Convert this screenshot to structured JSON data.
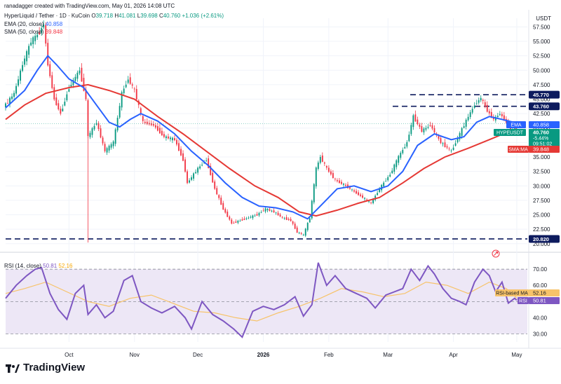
{
  "header": {
    "creator_line": "ranadagger created with TradingView.com, May 01, 2026 14:08 UTC",
    "symbol": "HyperLiquid / Tether · 1D · KuCoin",
    "ohlc": {
      "o_label": "O",
      "o": "39.718",
      "h_label": "H",
      "h": "41.081",
      "l_label": "L",
      "l": "39.698",
      "c_label": "C",
      "c": "40.760",
      "change": "+1.036 (+2.61%)"
    },
    "ema_label": "EMA (20, close)",
    "ema_value": "40.858",
    "sma_label": "SMA (50, close)",
    "sma_value": "39.848",
    "rsi_label": "RSI (14, close)",
    "rsi_value": "50.81",
    "rsi_ma_value": "52.16"
  },
  "price_axis": {
    "unit": "USDT",
    "ticks": [
      "57.500",
      "55.000",
      "52.500",
      "50.000",
      "47.500",
      "45.000",
      "42.500",
      "40.000",
      "37.500",
      "35.000",
      "32.500",
      "30.000",
      "27.500",
      "25.000",
      "22.500",
      "20.000"
    ]
  },
  "rsi_axis": {
    "ticks": [
      "70.00",
      "60.00",
      "50.00",
      "40.00",
      "30.00"
    ]
  },
  "time_axis": {
    "ticks": [
      "Oct",
      "Nov",
      "Dec",
      "2026",
      "Feb",
      "Mar",
      "Apr",
      "May"
    ]
  },
  "labels": {
    "level_45770": "45.770",
    "level_43760": "43.760",
    "level_20820": "20.820",
    "ema_tag": "EMA",
    "ema_tag_value": "40.858",
    "symbol_tag": "HYPEUSDT",
    "symbol_tag_value": "40.760",
    "change_tag": "-5.44%",
    "timer_tag": "09:51:02",
    "sma_tag": "SMA:MA",
    "sma_tag_value": "39.848",
    "rsi_ma_tag": "RSI-based MA",
    "rsi_ma_tag_value": "52.16",
    "rsi_tag": "RSI",
    "rsi_tag_value": "50.81"
  },
  "brand": "TradingView",
  "colors": {
    "up": "#089981",
    "down": "#f23645",
    "ema": "#2962ff",
    "sma": "#e53935",
    "rsi": "#7e57c2",
    "rsi_ma": "#f7c36a",
    "band": "#ede7f6",
    "dash": "#0d1b5e"
  },
  "chart_data": [
    {
      "type": "candlestick",
      "title": "HyperLiquid / Tether · 1D · KuCoin",
      "ylabel": "USDT",
      "ylim": [
        19.0,
        59.0
      ],
      "x_range": [
        "2025-09-01",
        "2026-05-06"
      ],
      "horizontal_levels": [
        45.77,
        43.76,
        20.82
      ],
      "series": [
        {
          "name": "HYPEUSDT",
          "points": [
            [
              "2025-09-01",
              44.0
            ],
            [
              "2025-09-05",
              46.0
            ],
            [
              "2025-09-09",
              51.0
            ],
            [
              "2025-09-13",
              55.0
            ],
            [
              "2025-09-17",
              56.5
            ],
            [
              "2025-09-19",
              58.0
            ],
            [
              "2025-09-21",
              51.0
            ],
            [
              "2025-09-24",
              45.0
            ],
            [
              "2025-09-27",
              42.5
            ],
            [
              "2025-10-01",
              47.0
            ],
            [
              "2025-10-06",
              50.0
            ],
            [
              "2025-10-09",
              45.0
            ],
            [
              "2025-10-10",
              38.5
            ],
            [
              "2025-10-14",
              41.0
            ],
            [
              "2025-10-18",
              36.0
            ],
            [
              "2025-10-22",
              37.5
            ],
            [
              "2025-10-26",
              46.0
            ],
            [
              "2025-10-29",
              48.5
            ],
            [
              "2025-11-01",
              46.5
            ],
            [
              "2025-11-05",
              41.0
            ],
            [
              "2025-11-10",
              40.5
            ],
            [
              "2025-11-15",
              38.5
            ],
            [
              "2025-11-20",
              38.0
            ],
            [
              "2025-11-24",
              34.5
            ],
            [
              "2025-11-26",
              30.5
            ],
            [
              "2025-12-01",
              33.0
            ],
            [
              "2025-12-05",
              34.5
            ],
            [
              "2025-12-09",
              29.5
            ],
            [
              "2025-12-13",
              26.0
            ],
            [
              "2025-12-17",
              23.5
            ],
            [
              "2025-12-21",
              24.0
            ],
            [
              "2025-12-25",
              24.5
            ],
            [
              "2025-12-29",
              25.0
            ],
            [
              "2026-01-02",
              26.0
            ],
            [
              "2026-01-06",
              25.5
            ],
            [
              "2026-01-10",
              24.5
            ],
            [
              "2026-01-14",
              24.0
            ],
            [
              "2026-01-17",
              22.0
            ],
            [
              "2026-01-20",
              21.5
            ],
            [
              "2026-01-23",
              24.5
            ],
            [
              "2026-01-26",
              33.0
            ],
            [
              "2026-01-28",
              35.0
            ],
            [
              "2026-01-31",
              33.0
            ],
            [
              "2026-02-04",
              31.0
            ],
            [
              "2026-02-09",
              30.0
            ],
            [
              "2026-02-13",
              29.0
            ],
            [
              "2026-02-17",
              28.0
            ],
            [
              "2026-02-21",
              27.0
            ],
            [
              "2026-02-25",
              29.5
            ],
            [
              "2026-03-02",
              32.0
            ],
            [
              "2026-03-06",
              35.0
            ],
            [
              "2026-03-10",
              37.5
            ],
            [
              "2026-03-13",
              42.0
            ],
            [
              "2026-03-17",
              39.5
            ],
            [
              "2026-03-21",
              40.5
            ],
            [
              "2026-03-26",
              37.5
            ],
            [
              "2026-03-31",
              36.0
            ],
            [
              "2026-04-04",
              39.0
            ],
            [
              "2026-04-08",
              42.0
            ],
            [
              "2026-04-11",
              44.0
            ],
            [
              "2026-04-14",
              45.2
            ],
            [
              "2026-04-17",
              43.0
            ],
            [
              "2026-04-20",
              41.5
            ],
            [
              "2026-04-23",
              42.5
            ],
            [
              "2026-04-26",
              41.0
            ],
            [
              "2026-04-28",
              39.5
            ],
            [
              "2026-04-30",
              40.1
            ],
            [
              "2026-05-01",
              40.76
            ]
          ]
        },
        {
          "name": "EMA (20, close)",
          "points": [
            [
              "2025-09-01",
              43.5
            ],
            [
              "2025-09-10",
              46.5
            ],
            [
              "2025-09-16",
              50.0
            ],
            [
              "2025-09-21",
              52.5
            ],
            [
              "2025-09-25",
              51.0
            ],
            [
              "2025-10-01",
              48.5
            ],
            [
              "2025-10-08",
              47.0
            ],
            [
              "2025-10-14",
              44.0
            ],
            [
              "2025-10-20",
              41.0
            ],
            [
              "2025-10-25",
              40.2
            ],
            [
              "2025-10-30",
              41.5
            ],
            [
              "2025-11-04",
              42.5
            ],
            [
              "2025-11-12",
              41.2
            ],
            [
              "2025-11-20",
              39.0
            ],
            [
              "2025-11-28",
              36.0
            ],
            [
              "2025-12-06",
              33.5
            ],
            [
              "2025-12-14",
              30.5
            ],
            [
              "2025-12-22",
              28.0
            ],
            [
              "2025-12-30",
              26.5
            ],
            [
              "2026-01-07",
              26.2
            ],
            [
              "2026-01-15",
              25.5
            ],
            [
              "2026-01-22",
              24.3
            ],
            [
              "2026-01-28",
              26.5
            ],
            [
              "2026-02-05",
              29.5
            ],
            [
              "2026-02-13",
              30.0
            ],
            [
              "2026-02-21",
              29.0
            ],
            [
              "2026-03-01",
              30.0
            ],
            [
              "2026-03-08",
              32.5
            ],
            [
              "2026-03-15",
              37.0
            ],
            [
              "2026-03-23",
              39.0
            ],
            [
              "2026-03-31",
              38.0
            ],
            [
              "2026-04-06",
              38.5
            ],
            [
              "2026-04-12",
              41.0
            ],
            [
              "2026-04-18",
              42.0
            ],
            [
              "2026-04-24",
              41.5
            ],
            [
              "2026-05-01",
              40.858
            ]
          ]
        },
        {
          "name": "SMA (50, close)",
          "points": [
            [
              "2025-09-01",
              41.5
            ],
            [
              "2025-09-10",
              44.0
            ],
            [
              "2025-09-20",
              46.0
            ],
            [
              "2025-10-01",
              47.0
            ],
            [
              "2025-10-10",
              47.5
            ],
            [
              "2025-10-20",
              46.5
            ],
            [
              "2025-11-01",
              45.0
            ],
            [
              "2025-11-12",
              42.0
            ],
            [
              "2025-11-24",
              39.0
            ],
            [
              "2025-12-05",
              36.0
            ],
            [
              "2025-12-16",
              33.0
            ],
            [
              "2025-12-28",
              30.0
            ],
            [
              "2026-01-08",
              28.0
            ],
            [
              "2026-01-18",
              25.5
            ],
            [
              "2026-01-26",
              24.8
            ],
            [
              "2026-02-05",
              25.8
            ],
            [
              "2026-02-15",
              27.0
            ],
            [
              "2026-02-25",
              28.0
            ],
            [
              "2026-03-08",
              30.5
            ],
            [
              "2026-03-18",
              33.0
            ],
            [
              "2026-03-28",
              35.0
            ],
            [
              "2026-04-08",
              36.5
            ],
            [
              "2026-04-18",
              38.0
            ],
            [
              "2026-04-26",
              39.2
            ],
            [
              "2026-05-01",
              39.848
            ]
          ]
        }
      ]
    },
    {
      "type": "line",
      "title": "RSI (14, close)",
      "ylim": [
        25,
        77
      ],
      "bands": [
        30,
        50,
        70
      ],
      "series": [
        {
          "name": "RSI",
          "points": [
            [
              "2025-09-01",
              52
            ],
            [
              "2025-09-06",
              60
            ],
            [
              "2025-09-11",
              66
            ],
            [
              "2025-09-15",
              70
            ],
            [
              "2025-09-18",
              71
            ],
            [
              "2025-09-22",
              55
            ],
            [
              "2025-09-26",
              45
            ],
            [
              "2025-09-30",
              39
            ],
            [
              "2025-10-04",
              55
            ],
            [
              "2025-10-08",
              60
            ],
            [
              "2025-10-10",
              42
            ],
            [
              "2025-10-14",
              48
            ],
            [
              "2025-10-18",
              40
            ],
            [
              "2025-10-22",
              44
            ],
            [
              "2025-10-27",
              63
            ],
            [
              "2025-10-31",
              66
            ],
            [
              "2025-11-04",
              50
            ],
            [
              "2025-11-09",
              46
            ],
            [
              "2025-11-14",
              43
            ],
            [
              "2025-11-20",
              47
            ],
            [
              "2025-11-25",
              40
            ],
            [
              "2025-11-28",
              33
            ],
            [
              "2025-12-03",
              50
            ],
            [
              "2025-12-08",
              42
            ],
            [
              "2025-12-13",
              38
            ],
            [
              "2025-12-18",
              33
            ],
            [
              "2025-12-22",
              28
            ],
            [
              "2025-12-27",
              44
            ],
            [
              "2026-01-01",
              47
            ],
            [
              "2026-01-06",
              45
            ],
            [
              "2026-01-11",
              48
            ],
            [
              "2026-01-16",
              53
            ],
            [
              "2026-01-20",
              41
            ],
            [
              "2026-01-24",
              48
            ],
            [
              "2026-01-27",
              74
            ],
            [
              "2026-01-31",
              60
            ],
            [
              "2026-02-04",
              66
            ],
            [
              "2026-02-09",
              58
            ],
            [
              "2026-02-14",
              55
            ],
            [
              "2026-02-19",
              52
            ],
            [
              "2026-02-23",
              46
            ],
            [
              "2026-02-28",
              54
            ],
            [
              "2026-03-04",
              56
            ],
            [
              "2026-03-08",
              58
            ],
            [
              "2026-03-12",
              70
            ],
            [
              "2026-03-16",
              63
            ],
            [
              "2026-03-20",
              72
            ],
            [
              "2026-03-23",
              67
            ],
            [
              "2026-03-27",
              58
            ],
            [
              "2026-03-31",
              52
            ],
            [
              "2026-04-04",
              50
            ],
            [
              "2026-04-07",
              48
            ],
            [
              "2026-04-11",
              62
            ],
            [
              "2026-04-15",
              70
            ],
            [
              "2026-04-18",
              66
            ],
            [
              "2026-04-21",
              56
            ],
            [
              "2026-04-24",
              62
            ],
            [
              "2026-04-27",
              49
            ],
            [
              "2026-04-30",
              52
            ],
            [
              "2026-05-01",
              50.81
            ]
          ]
        },
        {
          "name": "RSI-based MA",
          "points": [
            [
              "2025-09-01",
              55
            ],
            [
              "2025-09-10",
              58
            ],
            [
              "2025-09-20",
              62
            ],
            [
              "2025-09-30",
              56
            ],
            [
              "2025-10-10",
              50
            ],
            [
              "2025-10-20",
              47
            ],
            [
              "2025-10-30",
              52
            ],
            [
              "2025-11-09",
              54
            ],
            [
              "2025-11-19",
              49
            ],
            [
              "2025-11-29",
              44
            ],
            [
              "2025-12-09",
              43
            ],
            [
              "2025-12-19",
              40
            ],
            [
              "2025-12-29",
              38
            ],
            [
              "2026-01-08",
              43
            ],
            [
              "2026-01-18",
              47
            ],
            [
              "2026-01-28",
              52
            ],
            [
              "2026-02-07",
              58
            ],
            [
              "2026-02-17",
              56
            ],
            [
              "2026-02-27",
              53
            ],
            [
              "2026-03-09",
              55
            ],
            [
              "2026-03-19",
              62
            ],
            [
              "2026-03-29",
              60
            ],
            [
              "2026-04-08",
              55
            ],
            [
              "2026-04-18",
              62
            ],
            [
              "2026-04-26",
              58
            ],
            [
              "2026-05-01",
              52.16
            ]
          ]
        }
      ]
    }
  ]
}
